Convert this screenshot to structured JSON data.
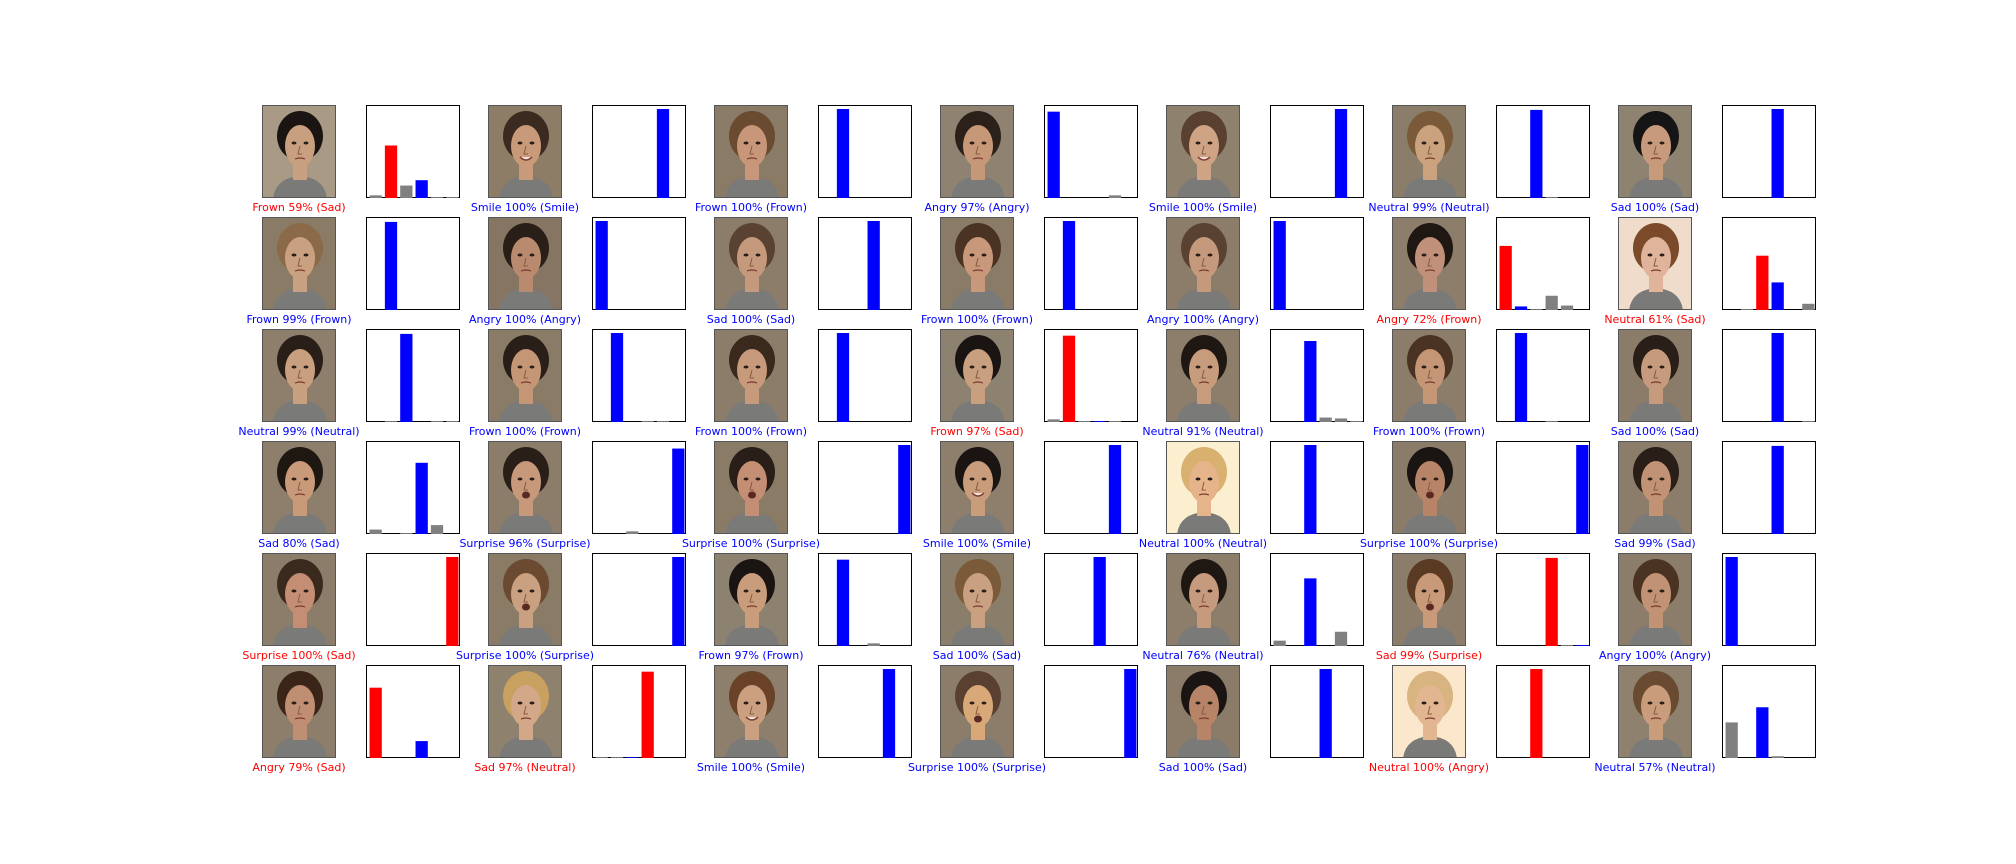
{
  "colors": {
    "correct": "#0000ff",
    "wrong": "#ff0000",
    "other": "#808080"
  },
  "grid": {
    "rows": 6,
    "cols": 7
  },
  "classes": [
    "Angry",
    "Frown",
    "Neutral",
    "Sad",
    "Smile",
    "Surprise"
  ],
  "chart_data": {
    "type": "bar",
    "description_free": true,
    "ylim": [
      0,
      1
    ],
    "panels": [
      {
        "label": "Frown 59% (Sad)",
        "pred": "Frown",
        "pct": 59,
        "truth": "Sad",
        "correct": false,
        "values": [
          0.03,
          0.59,
          0.14,
          0.2,
          0.01,
          0.01
        ],
        "skin": "#c9a07f",
        "hair": "#1a1412",
        "bg": "#a89a84"
      },
      {
        "label": "Smile 100% (Smile)",
        "pred": "Smile",
        "pct": 100,
        "truth": "Smile",
        "correct": true,
        "values": [
          0,
          0,
          0,
          0,
          1.0,
          0
        ],
        "skin": "#c99a7a",
        "hair": "#3b2a1f",
        "bg": "#8d7c66"
      },
      {
        "label": "Frown 100% (Frown)",
        "pred": "Frown",
        "pct": 100,
        "truth": "Frown",
        "correct": true,
        "values": [
          0,
          1.0,
          0,
          0,
          0,
          0
        ],
        "skin": "#c89678",
        "hair": "#6a4a30",
        "bg": "#8a7b66"
      },
      {
        "label": "Angry 97% (Angry)",
        "pred": "Angry",
        "pct": 97,
        "truth": "Angry",
        "correct": true,
        "values": [
          0.97,
          0,
          0,
          0,
          0.03,
          0
        ],
        "skin": "#c69878",
        "hair": "#2b201a",
        "bg": "#8f8270"
      },
      {
        "label": "Smile 100% (Smile)",
        "pred": "Smile",
        "pct": 100,
        "truth": "Smile",
        "correct": true,
        "values": [
          0,
          0,
          0,
          0,
          1.0,
          0
        ],
        "skin": "#cfa484",
        "hair": "#5a4030",
        "bg": "#8e816e"
      },
      {
        "label": "Neutral 99% (Neutral)",
        "pred": "Neutral",
        "pct": 99,
        "truth": "Neutral",
        "correct": true,
        "values": [
          0,
          0,
          0.99,
          0.01,
          0,
          0
        ],
        "skin": "#cba27e",
        "hair": "#7a5a38",
        "bg": "#8a7d69"
      },
      {
        "label": "Sad 100% (Sad)",
        "pred": "Sad",
        "pct": 100,
        "truth": "Sad",
        "correct": true,
        "values": [
          0,
          0,
          0,
          1.0,
          0,
          0
        ],
        "skin": "#c89a7c",
        "hair": "#151515",
        "bg": "#8e8270"
      },
      {
        "label": "Frown 99% (Frown)",
        "pred": "Frown",
        "pct": 99,
        "truth": "Frown",
        "correct": true,
        "values": [
          0,
          0.99,
          0,
          0,
          0,
          0
        ],
        "skin": "#c9a080",
        "hair": "#8a6a48",
        "bg": "#8a7b66"
      },
      {
        "label": "Angry 100% (Angry)",
        "pred": "Angry",
        "pct": 100,
        "truth": "Angry",
        "correct": true,
        "values": [
          1.0,
          0,
          0,
          0,
          0,
          0
        ],
        "skin": "#b98a6e",
        "hair": "#2a1e18",
        "bg": "#857562"
      },
      {
        "label": "Sad 100% (Sad)",
        "pred": "Sad",
        "pct": 100,
        "truth": "Sad",
        "correct": true,
        "values": [
          0,
          0,
          0,
          1.0,
          0,
          0
        ],
        "skin": "#c59a7c",
        "hair": "#5a4232",
        "bg": "#8b7d69"
      },
      {
        "label": "Frown 100% (Frown)",
        "pred": "Frown",
        "pct": 100,
        "truth": "Frown",
        "correct": true,
        "values": [
          0,
          1.0,
          0,
          0,
          0,
          0
        ],
        "skin": "#c9987a",
        "hair": "#4a3322",
        "bg": "#8a7b66"
      },
      {
        "label": "Angry 100% (Angry)",
        "pred": "Angry",
        "pct": 100,
        "truth": "Angry",
        "correct": true,
        "values": [
          1.0,
          0,
          0,
          0,
          0,
          0
        ],
        "skin": "#c59a7c",
        "hair": "#5a4232",
        "bg": "#8b7d69"
      },
      {
        "label": "Angry 72% (Frown)",
        "pred": "Angry",
        "pct": 72,
        "truth": "Frown",
        "correct": false,
        "values": [
          0.72,
          0.04,
          0.01,
          0.16,
          0.05,
          0
        ],
        "skin": "#c0907a",
        "hair": "#1f1712",
        "bg": "#8c7e6b"
      },
      {
        "label": "Neutral 61% (Sad)",
        "pred": "Neutral",
        "pct": 61,
        "truth": "Sad",
        "correct": false,
        "values": [
          0,
          0.01,
          0.61,
          0.31,
          0,
          0.07
        ],
        "skin": "#e0b49a",
        "hair": "#7a4a2a",
        "bg": "#f0dccb"
      },
      {
        "label": "Neutral 99% (Neutral)",
        "pred": "Neutral",
        "pct": 99,
        "truth": "Neutral",
        "correct": true,
        "values": [
          0,
          0.01,
          0.99,
          0,
          0.01,
          0.01
        ],
        "skin": "#c8a080",
        "hair": "#2a1e18",
        "bg": "#8d7f6c"
      },
      {
        "label": "Frown 100% (Frown)",
        "pred": "Frown",
        "pct": 100,
        "truth": "Frown",
        "correct": true,
        "values": [
          0,
          1.0,
          0,
          0.01,
          0.01,
          0
        ],
        "skin": "#c59676",
        "hair": "#2a1e18",
        "bg": "#8a7b66"
      },
      {
        "label": "Frown 100% (Frown)",
        "pred": "Frown",
        "pct": 100,
        "truth": "Frown",
        "correct": true,
        "values": [
          0,
          1.0,
          0,
          0,
          0,
          0
        ],
        "skin": "#c89a7c",
        "hair": "#3a2a1e",
        "bg": "#8b7d69"
      },
      {
        "label": "Frown 97% (Sad)",
        "pred": "Frown",
        "pct": 97,
        "truth": "Sad",
        "correct": false,
        "values": [
          0.03,
          0.97,
          0.01,
          0.01,
          0.01,
          0
        ],
        "skin": "#c8a080",
        "hair": "#1a1412",
        "bg": "#8d8170"
      },
      {
        "label": "Neutral 91% (Neutral)",
        "pred": "Neutral",
        "pct": 91,
        "truth": "Neutral",
        "correct": true,
        "values": [
          0,
          0,
          0.91,
          0.05,
          0.04,
          0.01
        ],
        "skin": "#c69c7c",
        "hair": "#1f1712",
        "bg": "#8c7e6b"
      },
      {
        "label": "Frown 100% (Frown)",
        "pred": "Frown",
        "pct": 100,
        "truth": "Frown",
        "correct": true,
        "values": [
          0,
          1.0,
          0,
          0.01,
          0,
          0
        ],
        "skin": "#c59676",
        "hair": "#4a3322",
        "bg": "#8b7d69"
      },
      {
        "label": "Sad 100% (Sad)",
        "pred": "Sad",
        "pct": 100,
        "truth": "Sad",
        "correct": true,
        "values": [
          0,
          0,
          0,
          1.0,
          0,
          0.01
        ],
        "skin": "#c69a7c",
        "hair": "#2a1e18",
        "bg": "#8a7c68"
      },
      {
        "label": "Sad 80% (Sad)",
        "pred": "Sad",
        "pct": 80,
        "truth": "Sad",
        "correct": true,
        "values": [
          0.05,
          0,
          0.01,
          0.8,
          0.1,
          0
        ],
        "skin": "#c89a7a",
        "hair": "#1f1712",
        "bg": "#8d7f6c"
      },
      {
        "label": "Surprise 96% (Surprise)",
        "pred": "Surprise",
        "pct": 96,
        "truth": "Surprise",
        "correct": true,
        "values": [
          0,
          0,
          0.03,
          0,
          0,
          0.96
        ],
        "skin": "#c8987a",
        "hair": "#2a1e18",
        "bg": "#8b7d69"
      },
      {
        "label": "Surprise 100% (Surprise)",
        "pred": "Surprise",
        "pct": 100,
        "truth": "Surprise",
        "correct": true,
        "values": [
          0,
          0,
          0,
          0,
          0,
          1.0
        ],
        "skin": "#c48e74",
        "hair": "#2a1e18",
        "bg": "#8a7b66"
      },
      {
        "label": "Smile 100% (Smile)",
        "pred": "Smile",
        "pct": 100,
        "truth": "Smile",
        "correct": true,
        "values": [
          0,
          0,
          0,
          0,
          1.0,
          0
        ],
        "skin": "#c99c7c",
        "hair": "#1a1412",
        "bg": "#8d7f6c"
      },
      {
        "label": "Neutral 100% (Neutral)",
        "pred": "Neutral",
        "pct": 100,
        "truth": "Neutral",
        "correct": true,
        "values": [
          0,
          0,
          1.0,
          0,
          0,
          0
        ],
        "skin": "#e6b48a",
        "hair": "#d8b070",
        "bg": "#fbefd0"
      },
      {
        "label": "Surprise 100% (Surprise)",
        "pred": "Surprise",
        "pct": 100,
        "truth": "Surprise",
        "correct": true,
        "values": [
          0,
          0,
          0,
          0,
          0,
          1.0
        ],
        "skin": "#b88468",
        "hair": "#1a1412",
        "bg": "#8a7c68"
      },
      {
        "label": "Sad 99% (Sad)",
        "pred": "Sad",
        "pct": 99,
        "truth": "Sad",
        "correct": true,
        "values": [
          0,
          0,
          0,
          0.99,
          0,
          0
        ],
        "skin": "#c29274",
        "hair": "#2a1e18",
        "bg": "#8b7d69"
      },
      {
        "label": "Surprise 100% (Sad)",
        "pred": "Surprise",
        "pct": 100,
        "truth": "Sad",
        "correct": false,
        "values": [
          0,
          0,
          0,
          0,
          0,
          1.0
        ],
        "skin": "#c48e74",
        "hair": "#3a2a1e",
        "bg": "#8b7d69"
      },
      {
        "label": "Surprise 100% (Surprise)",
        "pred": "Surprise",
        "pct": 100,
        "truth": "Surprise",
        "correct": true,
        "values": [
          0,
          0,
          0,
          0,
          0,
          1.0
        ],
        "skin": "#c9a080",
        "hair": "#6a4a30",
        "bg": "#8a7b66"
      },
      {
        "label": "Frown 97% (Frown)",
        "pred": "Frown",
        "pct": 97,
        "truth": "Frown",
        "correct": true,
        "values": [
          0,
          0.97,
          0,
          0.03,
          0,
          0
        ],
        "skin": "#c99c7c",
        "hair": "#1a1412",
        "bg": "#8d8170"
      },
      {
        "label": "Sad 100% (Sad)",
        "pred": "Sad",
        "pct": 100,
        "truth": "Sad",
        "correct": true,
        "values": [
          0,
          0,
          0,
          1.0,
          0,
          0
        ],
        "skin": "#c9a080",
        "hair": "#7a5a38",
        "bg": "#8a7d69"
      },
      {
        "label": "Neutral 76% (Neutral)",
        "pred": "Neutral",
        "pct": 76,
        "truth": "Neutral",
        "correct": true,
        "values": [
          0.06,
          0,
          0.76,
          0,
          0.16,
          0
        ],
        "skin": "#c69a7c",
        "hair": "#1f1712",
        "bg": "#8c7e6b"
      },
      {
        "label": "Sad 99% (Surprise)",
        "pred": "Sad",
        "pct": 99,
        "truth": "Surprise",
        "correct": false,
        "values": [
          0,
          0,
          0,
          0.99,
          0.01,
          0.01
        ],
        "skin": "#c89a7a",
        "hair": "#5a3a22",
        "bg": "#8b7d69"
      },
      {
        "label": "Angry 100% (Angry)",
        "pred": "Angry",
        "pct": 100,
        "truth": "Angry",
        "correct": true,
        "values": [
          1.0,
          0,
          0,
          0,
          0,
          0
        ],
        "skin": "#c29274",
        "hair": "#4a3322",
        "bg": "#8b7d69"
      },
      {
        "label": "Angry 79% (Sad)",
        "pred": "Angry",
        "pct": 79,
        "truth": "Sad",
        "correct": false,
        "values": [
          0.79,
          0,
          0,
          0.19,
          0,
          0
        ],
        "skin": "#c08e72",
        "hair": "#3a2518",
        "bg": "#8c7e6b"
      },
      {
        "label": "Sad 97% (Neutral)",
        "pred": "Sad",
        "pct": 97,
        "truth": "Neutral",
        "correct": false,
        "values": [
          0.01,
          0.01,
          0.01,
          0.97,
          0,
          0
        ],
        "skin": "#d2a888",
        "hair": "#c8a060",
        "bg": "#8e826f"
      },
      {
        "label": "Smile 100% (Smile)",
        "pred": "Smile",
        "pct": 100,
        "truth": "Smile",
        "correct": true,
        "values": [
          0,
          0,
          0,
          0,
          1.0,
          0
        ],
        "skin": "#cba080",
        "hair": "#6a4228",
        "bg": "#8d7f6c"
      },
      {
        "label": "Surprise 100% (Surprise)",
        "pred": "Surprise",
        "pct": 100,
        "truth": "Surprise",
        "correct": true,
        "values": [
          0,
          0,
          0,
          0,
          0,
          1.0
        ],
        "skin": "#d8a878",
        "hair": "#5a4030",
        "bg": "#8b7d69"
      },
      {
        "label": "Sad 100% (Sad)",
        "pred": "Sad",
        "pct": 100,
        "truth": "Sad",
        "correct": true,
        "values": [
          0,
          0,
          0,
          1.0,
          0,
          0
        ],
        "skin": "#b88468",
        "hair": "#1a1412",
        "bg": "#8a7c68"
      },
      {
        "label": "Neutral 100% (Angry)",
        "pred": "Neutral",
        "pct": 100,
        "truth": "Angry",
        "correct": false,
        "values": [
          0,
          0,
          1.0,
          0,
          0,
          0
        ],
        "skin": "#e2b690",
        "hair": "#d8b480",
        "bg": "#fbe8cc"
      },
      {
        "label": "Neutral 57% (Neutral)",
        "pred": "Neutral",
        "pct": 57,
        "truth": "Neutral",
        "correct": true,
        "values": [
          0.4,
          0,
          0.57,
          0.02,
          0,
          0
        ],
        "skin": "#c99c7c",
        "hair": "#6a4a30",
        "bg": "#8e826f"
      }
    ]
  }
}
